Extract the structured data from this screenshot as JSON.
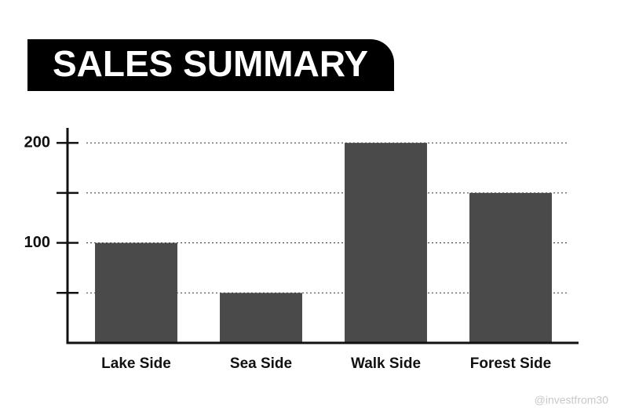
{
  "chart_data": {
    "type": "bar",
    "title": "SALES SUMMARY",
    "categories": [
      "Lake Side",
      "Sea Side",
      "Walk Side",
      "Forest Side"
    ],
    "values": [
      100,
      50,
      200,
      150
    ],
    "color": "#4a4a4a",
    "ylim": [
      0,
      215
    ],
    "yticks": [
      {
        "value": 50,
        "label": null
      },
      100,
      {
        "value": 150,
        "label": null
      },
      200
    ],
    "grid": true,
    "watermark": "@investfrom30"
  }
}
